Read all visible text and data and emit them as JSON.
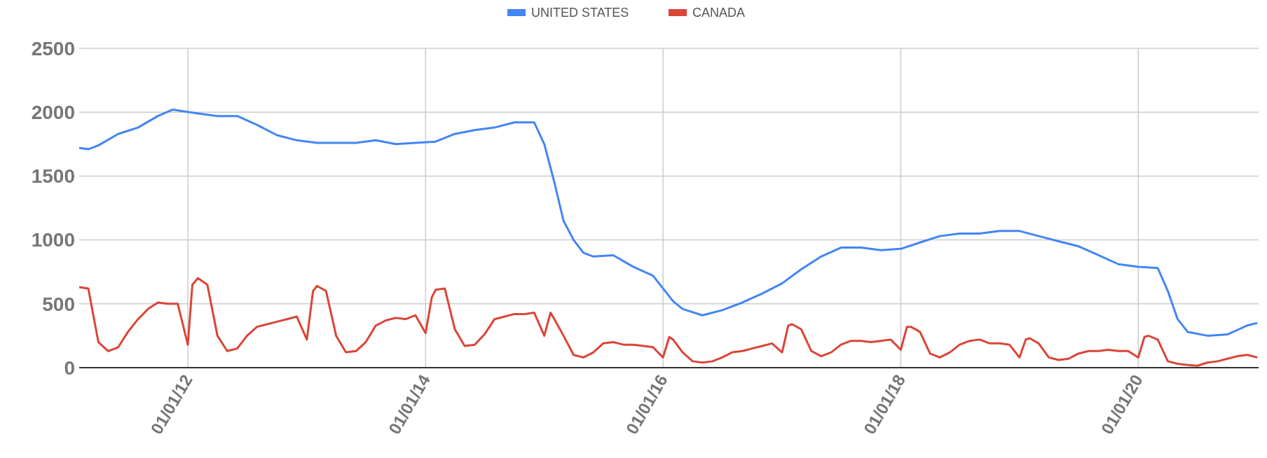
{
  "chart_data": {
    "type": "line",
    "xlim": [
      "2011-02-01",
      "2021-01-05"
    ],
    "xticks": [
      {
        "value": "2012-01-01",
        "label": "01/01/12"
      },
      {
        "value": "2014-01-01",
        "label": "01/01/14"
      },
      {
        "value": "2016-01-01",
        "label": "01/01/16"
      },
      {
        "value": "2018-01-01",
        "label": "01/01/18"
      },
      {
        "value": "2020-01-01",
        "label": "01/01/20"
      }
    ],
    "ylim": [
      0,
      2500
    ],
    "yticks": [
      0,
      500,
      1000,
      1500,
      2000,
      2500
    ],
    "grid": true,
    "legend": "top",
    "marker": "none",
    "line_style": "solid",
    "series": [
      {
        "name": "UNITED STATES",
        "color": "#4285f4",
        "x": [
          "2011-02-01",
          "2011-03-01",
          "2011-04-01",
          "2011-06-01",
          "2011-08-01",
          "2011-10-01",
          "2011-11-15",
          "2012-02-01",
          "2012-04-01",
          "2012-06-01",
          "2012-08-01",
          "2012-10-01",
          "2012-12-01",
          "2013-02-01",
          "2013-04-01",
          "2013-06-01",
          "2013-08-01",
          "2013-10-01",
          "2013-12-01",
          "2014-02-01",
          "2014-04-01",
          "2014-06-01",
          "2014-08-01",
          "2014-10-01",
          "2014-12-01",
          "2015-01-01",
          "2015-02-01",
          "2015-03-01",
          "2015-04-01",
          "2015-05-01",
          "2015-06-01",
          "2015-08-01",
          "2015-10-01",
          "2015-12-01",
          "2016-02-01",
          "2016-03-01",
          "2016-05-01",
          "2016-07-01",
          "2016-09-01",
          "2016-11-01",
          "2017-01-01",
          "2017-03-01",
          "2017-05-01",
          "2017-07-01",
          "2017-09-01",
          "2017-11-01",
          "2018-01-01",
          "2018-03-01",
          "2018-05-01",
          "2018-07-01",
          "2018-09-01",
          "2018-11-01",
          "2019-01-01",
          "2019-03-01",
          "2019-05-01",
          "2019-07-01",
          "2019-09-01",
          "2019-11-01",
          "2020-01-01",
          "2020-03-01",
          "2020-04-01",
          "2020-05-01",
          "2020-06-01",
          "2020-08-01",
          "2020-10-01",
          "2020-12-01",
          "2021-01-01"
        ],
        "values": [
          1720,
          1710,
          1740,
          1830,
          1880,
          1970,
          2020,
          1990,
          1970,
          1970,
          1900,
          1820,
          1780,
          1760,
          1760,
          1760,
          1780,
          1750,
          1760,
          1770,
          1830,
          1860,
          1880,
          1920,
          1920,
          1750,
          1450,
          1150,
          1000,
          900,
          870,
          880,
          790,
          720,
          520,
          460,
          410,
          450,
          510,
          580,
          660,
          770,
          870,
          940,
          940,
          920,
          930,
          980,
          1030,
          1050,
          1050,
          1070,
          1070,
          1030,
          990,
          950,
          880,
          810,
          790,
          780,
          600,
          380,
          280,
          250,
          260,
          330,
          350
        ]
      },
      {
        "name": "CANADA",
        "color": "#db4437",
        "x": [
          "2011-02-01",
          "2011-03-01",
          "2011-04-01",
          "2011-05-01",
          "2011-06-01",
          "2011-07-01",
          "2011-08-01",
          "2011-09-01",
          "2011-10-01",
          "2011-11-01",
          "2011-12-01",
          "2012-01-01",
          "2012-01-15",
          "2012-02-01",
          "2012-03-01",
          "2012-04-01",
          "2012-05-01",
          "2012-06-01",
          "2012-07-01",
          "2012-08-01",
          "2012-09-01",
          "2012-10-01",
          "2012-11-01",
          "2012-12-01",
          "2013-01-01",
          "2013-01-20",
          "2013-02-01",
          "2013-03-01",
          "2013-04-01",
          "2013-05-01",
          "2013-06-01",
          "2013-07-01",
          "2013-08-01",
          "2013-09-01",
          "2013-10-01",
          "2013-11-01",
          "2013-12-01",
          "2014-01-01",
          "2014-01-20",
          "2014-02-01",
          "2014-03-01",
          "2014-04-01",
          "2014-05-01",
          "2014-06-01",
          "2014-07-01",
          "2014-08-01",
          "2014-09-01",
          "2014-10-01",
          "2014-11-01",
          "2014-12-01",
          "2015-01-01",
          "2015-01-20",
          "2015-02-01",
          "2015-03-01",
          "2015-04-01",
          "2015-05-01",
          "2015-06-01",
          "2015-07-01",
          "2015-08-01",
          "2015-09-01",
          "2015-10-01",
          "2015-11-01",
          "2015-12-01",
          "2016-01-01",
          "2016-01-20",
          "2016-02-01",
          "2016-03-01",
          "2016-04-01",
          "2016-05-01",
          "2016-06-01",
          "2016-07-01",
          "2016-08-01",
          "2016-09-01",
          "2016-10-01",
          "2016-11-01",
          "2016-12-01",
          "2017-01-01",
          "2017-01-20",
          "2017-02-01",
          "2017-03-01",
          "2017-04-01",
          "2017-05-01",
          "2017-06-01",
          "2017-07-01",
          "2017-08-01",
          "2017-09-01",
          "2017-10-01",
          "2017-11-01",
          "2017-12-01",
          "2018-01-01",
          "2018-01-20",
          "2018-02-01",
          "2018-03-01",
          "2018-04-01",
          "2018-05-01",
          "2018-06-01",
          "2018-07-01",
          "2018-08-01",
          "2018-09-01",
          "2018-10-01",
          "2018-11-01",
          "2018-12-01",
          "2019-01-01",
          "2019-01-20",
          "2019-02-01",
          "2019-03-01",
          "2019-04-01",
          "2019-05-01",
          "2019-06-01",
          "2019-07-01",
          "2019-08-01",
          "2019-09-01",
          "2019-10-01",
          "2019-11-01",
          "2019-12-01",
          "2020-01-01",
          "2020-01-20",
          "2020-02-01",
          "2020-03-01",
          "2020-04-01",
          "2020-05-01",
          "2020-06-01",
          "2020-07-01",
          "2020-08-01",
          "2020-09-01",
          "2020-10-01",
          "2020-11-01",
          "2020-12-01",
          "2021-01-01"
        ],
        "values": [
          630,
          620,
          200,
          130,
          160,
          280,
          380,
          460,
          510,
          500,
          500,
          180,
          650,
          700,
          650,
          250,
          130,
          150,
          250,
          320,
          340,
          360,
          380,
          400,
          220,
          600,
          640,
          600,
          250,
          120,
          130,
          200,
          330,
          370,
          390,
          380,
          410,
          270,
          550,
          610,
          620,
          300,
          170,
          180,
          260,
          380,
          400,
          420,
          420,
          430,
          250,
          430,
          380,
          250,
          100,
          80,
          120,
          190,
          200,
          180,
          180,
          170,
          160,
          80,
          240,
          220,
          120,
          50,
          40,
          50,
          80,
          120,
          130,
          150,
          170,
          190,
          120,
          330,
          340,
          300,
          130,
          90,
          120,
          180,
          210,
          210,
          200,
          210,
          220,
          140,
          320,
          320,
          280,
          110,
          80,
          120,
          180,
          210,
          220,
          190,
          190,
          180,
          80,
          220,
          230,
          190,
          80,
          60,
          70,
          110,
          130,
          130,
          140,
          130,
          130,
          80,
          240,
          250,
          220,
          50,
          30,
          20,
          15,
          40,
          50,
          70,
          90,
          100,
          80
        ]
      }
    ]
  }
}
